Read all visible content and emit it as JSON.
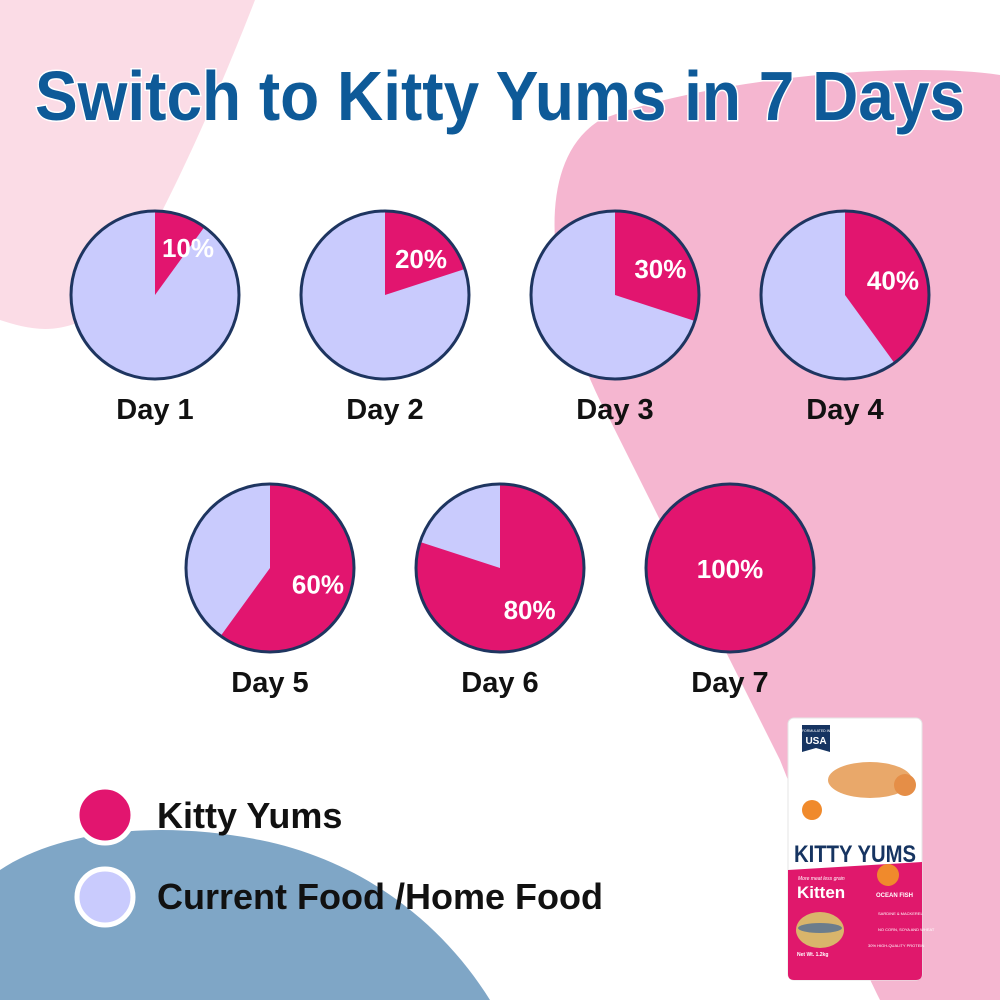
{
  "title": "Switch to Kitty Yums in 7 Days",
  "colors": {
    "kitty_yums": "#E2156F",
    "current_food": "#C9CBFD",
    "outline": "#1E3560",
    "title": "#0E5A98",
    "bg_pink_light": "#FBDCE6",
    "bg_pink": "#F5B6D0",
    "bg_blue": "#7FA6C6"
  },
  "chart_data": {
    "type": "pie",
    "title": "Switch to Kitty Yums in 7 Days",
    "series_names": [
      "Kitty Yums",
      "Current Food /Home Food"
    ],
    "pies": [
      {
        "label": "Day 1",
        "kitty_yums": 10,
        "data_label": "10%"
      },
      {
        "label": "Day 2",
        "kitty_yums": 20,
        "data_label": "20%"
      },
      {
        "label": "Day 3",
        "kitty_yums": 30,
        "data_label": "30%"
      },
      {
        "label": "Day 4",
        "kitty_yums": 40,
        "data_label": "40%"
      },
      {
        "label": "Day 5",
        "kitty_yums": 60,
        "data_label": "60%"
      },
      {
        "label": "Day 6",
        "kitty_yums": 80,
        "data_label": "80%"
      },
      {
        "label": "Day 7",
        "kitty_yums": 100,
        "data_label": "100%"
      }
    ]
  },
  "legend": [
    {
      "label": "Kitty Yums"
    },
    {
      "label": "Current Food /Home Food"
    }
  ],
  "product": {
    "origin_small": "FORMULATED IN",
    "origin": "USA",
    "brand": "KITTY YUMS",
    "tagline": "More meat less grain",
    "variant": "Kitten",
    "flavor": "OCEAN FISH",
    "feature_1": "SARDINE & MACKEREL",
    "feature_2": "NO CORN, SOYA AND WHEAT",
    "feature_3": "30% HIGH-QUALITY PROTEIN",
    "net_weight": "Net Wt. 1.2kg"
  }
}
